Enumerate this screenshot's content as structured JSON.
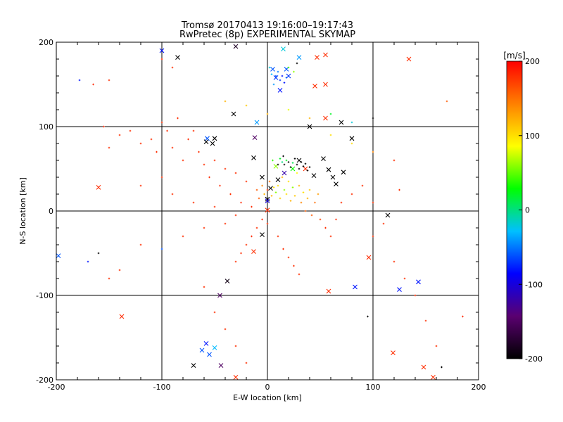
{
  "chart_data": {
    "type": "scatter",
    "title": "Tromsø 20170413 19:16:00–19:17:43",
    "subtitle": "RwPretec (8p) EXPERIMENTAL SKYMAP",
    "xlabel": "E-W location [km]",
    "ylabel": "N-S location [km]",
    "xlim": [
      -200,
      200
    ],
    "ylim": [
      -200,
      200
    ],
    "xticks": [
      "-200",
      "-100",
      "0",
      "100",
      "200"
    ],
    "yticks": [
      "-200",
      "-100",
      "0",
      "100",
      "200"
    ],
    "grid": true,
    "colorbar": {
      "label": "[m/s]",
      "range": [
        -200,
        200
      ],
      "ticks": [
        "200",
        "100",
        "0",
        "-100",
        "-200"
      ],
      "colormap": [
        "#000000",
        "#5a0070",
        "#0000ff",
        "#00c0ff",
        "#00ff00",
        "#ffff00",
        "#ff8000",
        "#ff0000"
      ]
    },
    "series": [
      {
        "marker": "x",
        "points": [
          [
            -100,
            190,
            -80
          ],
          [
            -30,
            195,
            -180
          ],
          [
            15,
            192,
            -20
          ],
          [
            30,
            182,
            -40
          ],
          [
            47,
            182,
            180
          ],
          [
            55,
            185,
            180
          ],
          [
            -160,
            28,
            180
          ],
          [
            -138,
            -125,
            180
          ],
          [
            -198,
            -53,
            -60
          ],
          [
            -45,
            -100,
            -150
          ],
          [
            -38,
            -83,
            -190
          ],
          [
            -58,
            -157,
            -80
          ],
          [
            -55,
            -170,
            -60
          ],
          [
            -50,
            -162,
            -30
          ],
          [
            -70,
            -183,
            -200
          ],
          [
            -62,
            -165,
            -60
          ],
          [
            -44,
            -183,
            -150
          ],
          [
            -30,
            -197,
            180
          ],
          [
            -85,
            182,
            -200
          ],
          [
            -57,
            86,
            -60
          ],
          [
            -50,
            86,
            -200
          ],
          [
            -52,
            80,
            -200
          ],
          [
            -58,
            82,
            -200
          ],
          [
            -32,
            115,
            -200
          ],
          [
            -12,
            87,
            -150
          ],
          [
            -10,
            105,
            -40
          ],
          [
            -13,
            63,
            -200
          ],
          [
            -5,
            40,
            -200
          ],
          [
            0,
            14,
            -200
          ],
          [
            0,
            12,
            -100
          ],
          [
            0,
            1,
            180
          ],
          [
            3,
            27,
            -200
          ],
          [
            10,
            37,
            -200
          ],
          [
            8,
            53,
            60
          ],
          [
            16,
            45,
            -120
          ],
          [
            24,
            50,
            30
          ],
          [
            30,
            60,
            -200
          ],
          [
            36,
            50,
            180
          ],
          [
            44,
            42,
            -200
          ],
          [
            53,
            62,
            -200
          ],
          [
            58,
            49,
            -200
          ],
          [
            62,
            40,
            -200
          ],
          [
            65,
            32,
            -200
          ],
          [
            72,
            46,
            -200
          ],
          [
            40,
            100,
            -200
          ],
          [
            55,
            110,
            180
          ],
          [
            70,
            105,
            -200
          ],
          [
            80,
            86,
            -200
          ],
          [
            -5,
            -28,
            -200
          ],
          [
            -13,
            -48,
            180
          ],
          [
            58,
            -95,
            180
          ],
          [
            83,
            -90,
            -80
          ],
          [
            96,
            -55,
            180
          ],
          [
            125,
            -93,
            -80
          ],
          [
            143,
            -84,
            -80
          ],
          [
            114,
            -5,
            -200
          ],
          [
            134,
            180,
            180
          ],
          [
            119,
            -168,
            180
          ],
          [
            148,
            -185,
            180
          ],
          [
            157,
            -197,
            180
          ],
          [
            55,
            150,
            180
          ],
          [
            45,
            148,
            180
          ],
          [
            12,
            143,
            -80
          ],
          [
            20,
            160,
            -70
          ],
          [
            5,
            168,
            -60
          ],
          [
            18,
            168,
            -60
          ],
          [
            8,
            158,
            -70
          ]
        ]
      },
      {
        "marker": "+",
        "points": [
          [
            -155,
            100,
            180
          ],
          [
            -150,
            75,
            180
          ],
          [
            -140,
            90,
            180
          ],
          [
            -130,
            95,
            180
          ],
          [
            -120,
            80,
            180
          ],
          [
            -110,
            85,
            180
          ],
          [
            -105,
            70,
            180
          ],
          [
            -100,
            105,
            180
          ],
          [
            -95,
            95,
            180
          ],
          [
            -90,
            75,
            180
          ],
          [
            -85,
            110,
            180
          ],
          [
            -80,
            60,
            180
          ],
          [
            -75,
            85,
            180
          ],
          [
            -70,
            95,
            180
          ],
          [
            -65,
            70,
            180
          ],
          [
            -60,
            55,
            180
          ],
          [
            -55,
            40,
            180
          ],
          [
            -50,
            60,
            180
          ],
          [
            -45,
            30,
            180
          ],
          [
            -40,
            50,
            180
          ],
          [
            -35,
            20,
            180
          ],
          [
            -30,
            45,
            180
          ],
          [
            -25,
            10,
            180
          ],
          [
            -20,
            35,
            180
          ],
          [
            -15,
            5,
            180
          ],
          [
            -10,
            25,
            160
          ],
          [
            -8,
            15,
            160
          ],
          [
            -5,
            30,
            140
          ],
          [
            -3,
            20,
            120
          ],
          [
            0,
            25,
            180
          ],
          [
            2,
            35,
            150
          ],
          [
            4,
            18,
            120
          ],
          [
            6,
            28,
            100
          ],
          [
            8,
            22,
            60
          ],
          [
            10,
            30,
            100
          ],
          [
            12,
            15,
            110
          ],
          [
            14,
            40,
            120
          ],
          [
            16,
            25,
            60
          ],
          [
            18,
            20,
            100
          ],
          [
            20,
            35,
            100
          ],
          [
            22,
            12,
            120
          ],
          [
            24,
            28,
            60
          ],
          [
            26,
            18,
            110
          ],
          [
            28,
            45,
            90
          ],
          [
            30,
            30,
            120
          ],
          [
            32,
            10,
            140
          ],
          [
            34,
            22,
            100
          ],
          [
            36,
            0,
            160
          ],
          [
            38,
            15,
            120
          ],
          [
            40,
            25,
            110
          ],
          [
            42,
            -5,
            160
          ],
          [
            45,
            10,
            150
          ],
          [
            48,
            20,
            130
          ],
          [
            50,
            -10,
            170
          ],
          [
            55,
            -20,
            180
          ],
          [
            60,
            -30,
            180
          ],
          [
            5,
            60,
            40
          ],
          [
            10,
            55,
            -200
          ],
          [
            12,
            62,
            20
          ],
          [
            14,
            58,
            0
          ],
          [
            15,
            65,
            -200
          ],
          [
            16,
            55,
            -200
          ],
          [
            18,
            60,
            20
          ],
          [
            20,
            58,
            -200
          ],
          [
            22,
            52,
            -200
          ],
          [
            24,
            57,
            10
          ],
          [
            26,
            62,
            -200
          ],
          [
            28,
            55,
            -200
          ],
          [
            30,
            50,
            -200
          ],
          [
            32,
            58,
            -200
          ],
          [
            34,
            53,
            -200
          ],
          [
            36,
            56,
            -200
          ],
          [
            38,
            48,
            -200
          ],
          [
            40,
            52,
            -200
          ],
          [
            8,
            160,
            -60
          ],
          [
            10,
            165,
            -50
          ],
          [
            12,
            155,
            -70
          ],
          [
            14,
            160,
            -80
          ],
          [
            16,
            152,
            -80
          ],
          [
            6,
            150,
            -40
          ],
          [
            18,
            158,
            -60
          ],
          [
            4,
            162,
            -30
          ],
          [
            2,
            170,
            -20
          ],
          [
            20,
            170,
            40
          ],
          [
            25,
            165,
            60
          ],
          [
            28,
            175,
            -200
          ],
          [
            -40,
            130,
            120
          ],
          [
            -20,
            125,
            110
          ],
          [
            0,
            115,
            120
          ],
          [
            20,
            120,
            80
          ],
          [
            40,
            110,
            120
          ],
          [
            60,
            115,
            20
          ],
          [
            80,
            105,
            -20
          ],
          [
            100,
            110,
            -200
          ],
          [
            60,
            90,
            100
          ],
          [
            80,
            80,
            100
          ],
          [
            100,
            70,
            140
          ],
          [
            120,
            60,
            180
          ],
          [
            -5,
            -10,
            180
          ],
          [
            -10,
            -20,
            180
          ],
          [
            -15,
            -30,
            180
          ],
          [
            -20,
            -40,
            180
          ],
          [
            -25,
            -50,
            180
          ],
          [
            -30,
            -60,
            180
          ],
          [
            0,
            -15,
            180
          ],
          [
            10,
            -30,
            180
          ],
          [
            15,
            -45,
            180
          ],
          [
            20,
            -55,
            180
          ],
          [
            25,
            -65,
            180
          ],
          [
            30,
            -75,
            180
          ],
          [
            -150,
            -80,
            180
          ],
          [
            -170,
            -60,
            -80
          ],
          [
            -160,
            -50,
            -200
          ],
          [
            -140,
            -70,
            180
          ],
          [
            -100,
            -45,
            -60
          ],
          [
            -120,
            -40,
            180
          ],
          [
            -80,
            -30,
            180
          ],
          [
            -60,
            -20,
            180
          ],
          [
            -40,
            -15,
            180
          ],
          [
            -30,
            -5,
            180
          ],
          [
            100,
            -30,
            180
          ],
          [
            120,
            -60,
            180
          ],
          [
            130,
            -80,
            180
          ],
          [
            140,
            -100,
            180
          ],
          [
            150,
            -130,
            180
          ],
          [
            160,
            -160,
            180
          ],
          [
            -60,
            -90,
            180
          ],
          [
            -50,
            -120,
            180
          ],
          [
            -40,
            -140,
            180
          ],
          [
            -30,
            -160,
            180
          ],
          [
            -20,
            -180,
            180
          ],
          [
            -100,
            40,
            180
          ],
          [
            -120,
            30,
            180
          ],
          [
            -90,
            20,
            180
          ],
          [
            -70,
            10,
            180
          ],
          [
            -50,
            5,
            180
          ],
          [
            -178,
            155,
            -80
          ],
          [
            -165,
            150,
            180
          ],
          [
            -150,
            155,
            180
          ],
          [
            -100,
            180,
            180
          ],
          [
            -90,
            170,
            180
          ],
          [
            170,
            130,
            160
          ],
          [
            185,
            -125,
            180
          ],
          [
            95,
            -125,
            -200
          ],
          [
            165,
            -185,
            -200
          ],
          [
            100,
            10,
            180
          ],
          [
            110,
            -15,
            180
          ],
          [
            125,
            25,
            180
          ],
          [
            90,
            30,
            180
          ],
          [
            80,
            20,
            180
          ],
          [
            70,
            10,
            180
          ],
          [
            65,
            -10,
            180
          ]
        ]
      }
    ]
  }
}
